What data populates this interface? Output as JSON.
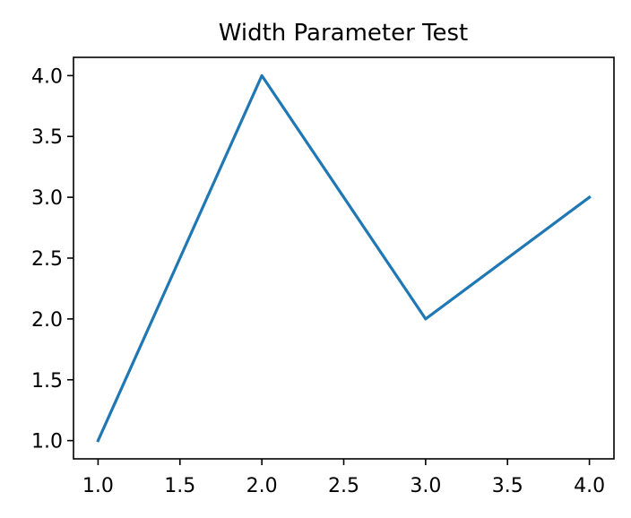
{
  "chart_data": {
    "type": "line",
    "title": "Width Parameter Test",
    "xlabel": "",
    "ylabel": "",
    "x": [
      1,
      2,
      3,
      4
    ],
    "series": [
      {
        "values": [
          1,
          4,
          2,
          3
        ],
        "color": "#1f77b4"
      }
    ],
    "xlim": [
      0.85,
      4.15
    ],
    "ylim": [
      0.85,
      4.15
    ],
    "xticks": [
      1.0,
      1.5,
      2.0,
      2.5,
      3.0,
      3.5,
      4.0
    ],
    "xtick_labels": [
      "1.0",
      "1.5",
      "2.0",
      "2.5",
      "3.0",
      "3.5",
      "4.0"
    ],
    "yticks": [
      1.0,
      1.5,
      2.0,
      2.5,
      3.0,
      3.5,
      4.0
    ],
    "ytick_labels": [
      "1.0",
      "1.5",
      "2.0",
      "2.5",
      "3.0",
      "3.5",
      "4.0"
    ],
    "grid": false,
    "legend": "none"
  }
}
